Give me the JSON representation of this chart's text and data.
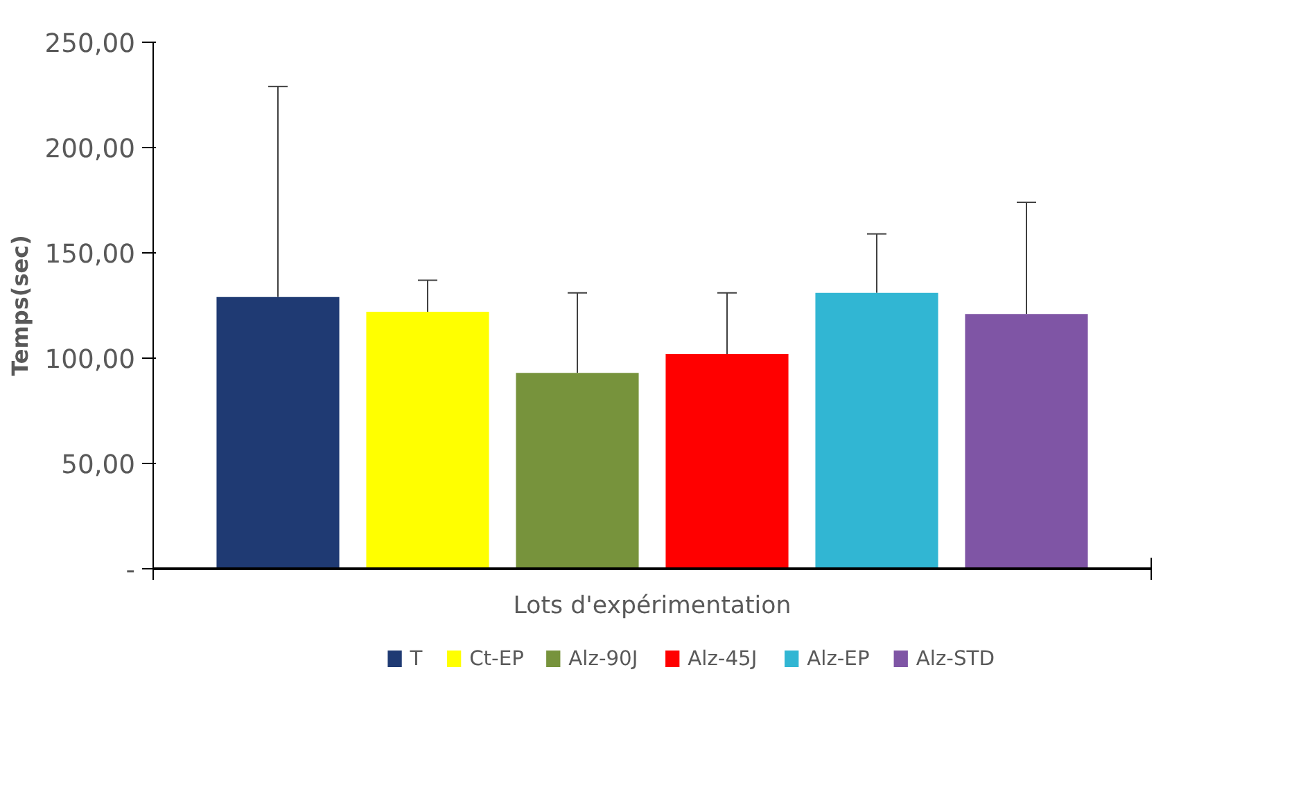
{
  "chart_data": {
    "type": "bar",
    "xlabel": "Lots d'expérimentation",
    "ylabel": "Temps(sec)",
    "categories": [
      null
    ],
    "series": [
      {
        "name": "T",
        "color": "#1f3a73",
        "values": [
          129
        ],
        "errors": [
          [
            129,
            229
          ]
        ]
      },
      {
        "name": "Ct-EP",
        "color": "#ffff00",
        "values": [
          122
        ],
        "errors": [
          [
            122,
            137
          ]
        ]
      },
      {
        "name": "Alz-90J",
        "color": "#77933c",
        "values": [
          93
        ],
        "errors": [
          [
            93,
            131
          ]
        ]
      },
      {
        "name": "Alz-45J",
        "color": "#ff0000",
        "values": [
          102
        ],
        "errors": [
          [
            102,
            131
          ]
        ]
      },
      {
        "name": "Alz-EP",
        "color": "#31b6d3",
        "values": [
          131
        ],
        "errors": [
          [
            131,
            159
          ]
        ]
      },
      {
        "name": "Alz-STD",
        "color": "#7f55a5",
        "values": [
          121
        ],
        "errors": [
          [
            121,
            174
          ]
        ]
      }
    ],
    "ylim": [
      0,
      250
    ],
    "yticks": [
      {
        "value": 0,
        "label": "-"
      },
      {
        "value": 50,
        "label": "50,00"
      },
      {
        "value": 100,
        "label": "100,00"
      },
      {
        "value": 150,
        "label": "150,00"
      },
      {
        "value": 200,
        "label": "200,00"
      },
      {
        "value": 250,
        "label": "250,00"
      }
    ],
    "grid": false,
    "legend": "bottom",
    "tick_labels": "y"
  }
}
